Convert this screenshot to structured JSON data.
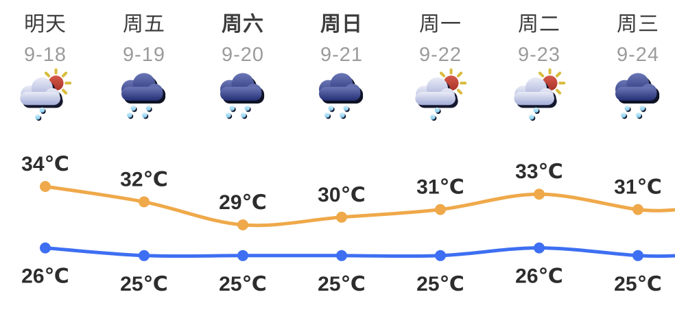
{
  "widget": {
    "kind": "seven-day-weather-forecast"
  },
  "colors": {
    "background": "#FFFFFF",
    "day_text": "#3D3D3D",
    "date_text": "#9B9B9B",
    "temp_text": "#2D2D2D",
    "high_line": "#EFA94A",
    "low_line": "#3E6FF2"
  },
  "days": [
    {
      "day": "明天",
      "date": "9-18",
      "icon": "sun-shower-icon",
      "weekend": false,
      "high": 34,
      "low": 26
    },
    {
      "day": "周五",
      "date": "9-19",
      "icon": "rain-icon",
      "weekend": false,
      "high": 32,
      "low": 25
    },
    {
      "day": "周六",
      "date": "9-20",
      "icon": "rain-icon",
      "weekend": true,
      "high": 29,
      "low": 25
    },
    {
      "day": "周日",
      "date": "9-21",
      "icon": "rain-icon",
      "weekend": true,
      "high": 30,
      "low": 25
    },
    {
      "day": "周一",
      "date": "9-22",
      "icon": "sun-shower-icon",
      "weekend": false,
      "high": 31,
      "low": 25
    },
    {
      "day": "周二",
      "date": "9-23",
      "icon": "sun-shower-icon",
      "weekend": false,
      "high": 33,
      "low": 26
    },
    {
      "day": "周三",
      "date": "9-24",
      "icon": "rain-icon",
      "weekend": false,
      "high": 31,
      "low": 25
    }
  ],
  "chart_data": {
    "type": "line",
    "categories": [
      "明天",
      "周五",
      "周六",
      "周日",
      "周一",
      "周二",
      "周三"
    ],
    "series": [
      {
        "id": "high",
        "name": "daily-high-temperature",
        "values": [
          34,
          32,
          29,
          30,
          31,
          33,
          31
        ],
        "color": "#EFA94A",
        "point_labels": [
          "34℃",
          "32℃",
          "29℃",
          "30℃",
          "31℃",
          "33℃",
          "31℃"
        ]
      },
      {
        "id": "low",
        "name": "daily-low-temperature",
        "values": [
          26,
          25,
          25,
          25,
          25,
          26,
          25
        ],
        "color": "#3E6FF2",
        "point_labels": [
          "26℃",
          "25℃",
          "25℃",
          "25℃",
          "25℃",
          "26℃",
          "25℃"
        ]
      }
    ],
    "unit": "℃",
    "ylim": [
      24,
      35
    ],
    "grid": false,
    "legend": "none",
    "title": "",
    "xlabel": "",
    "ylabel": ""
  }
}
